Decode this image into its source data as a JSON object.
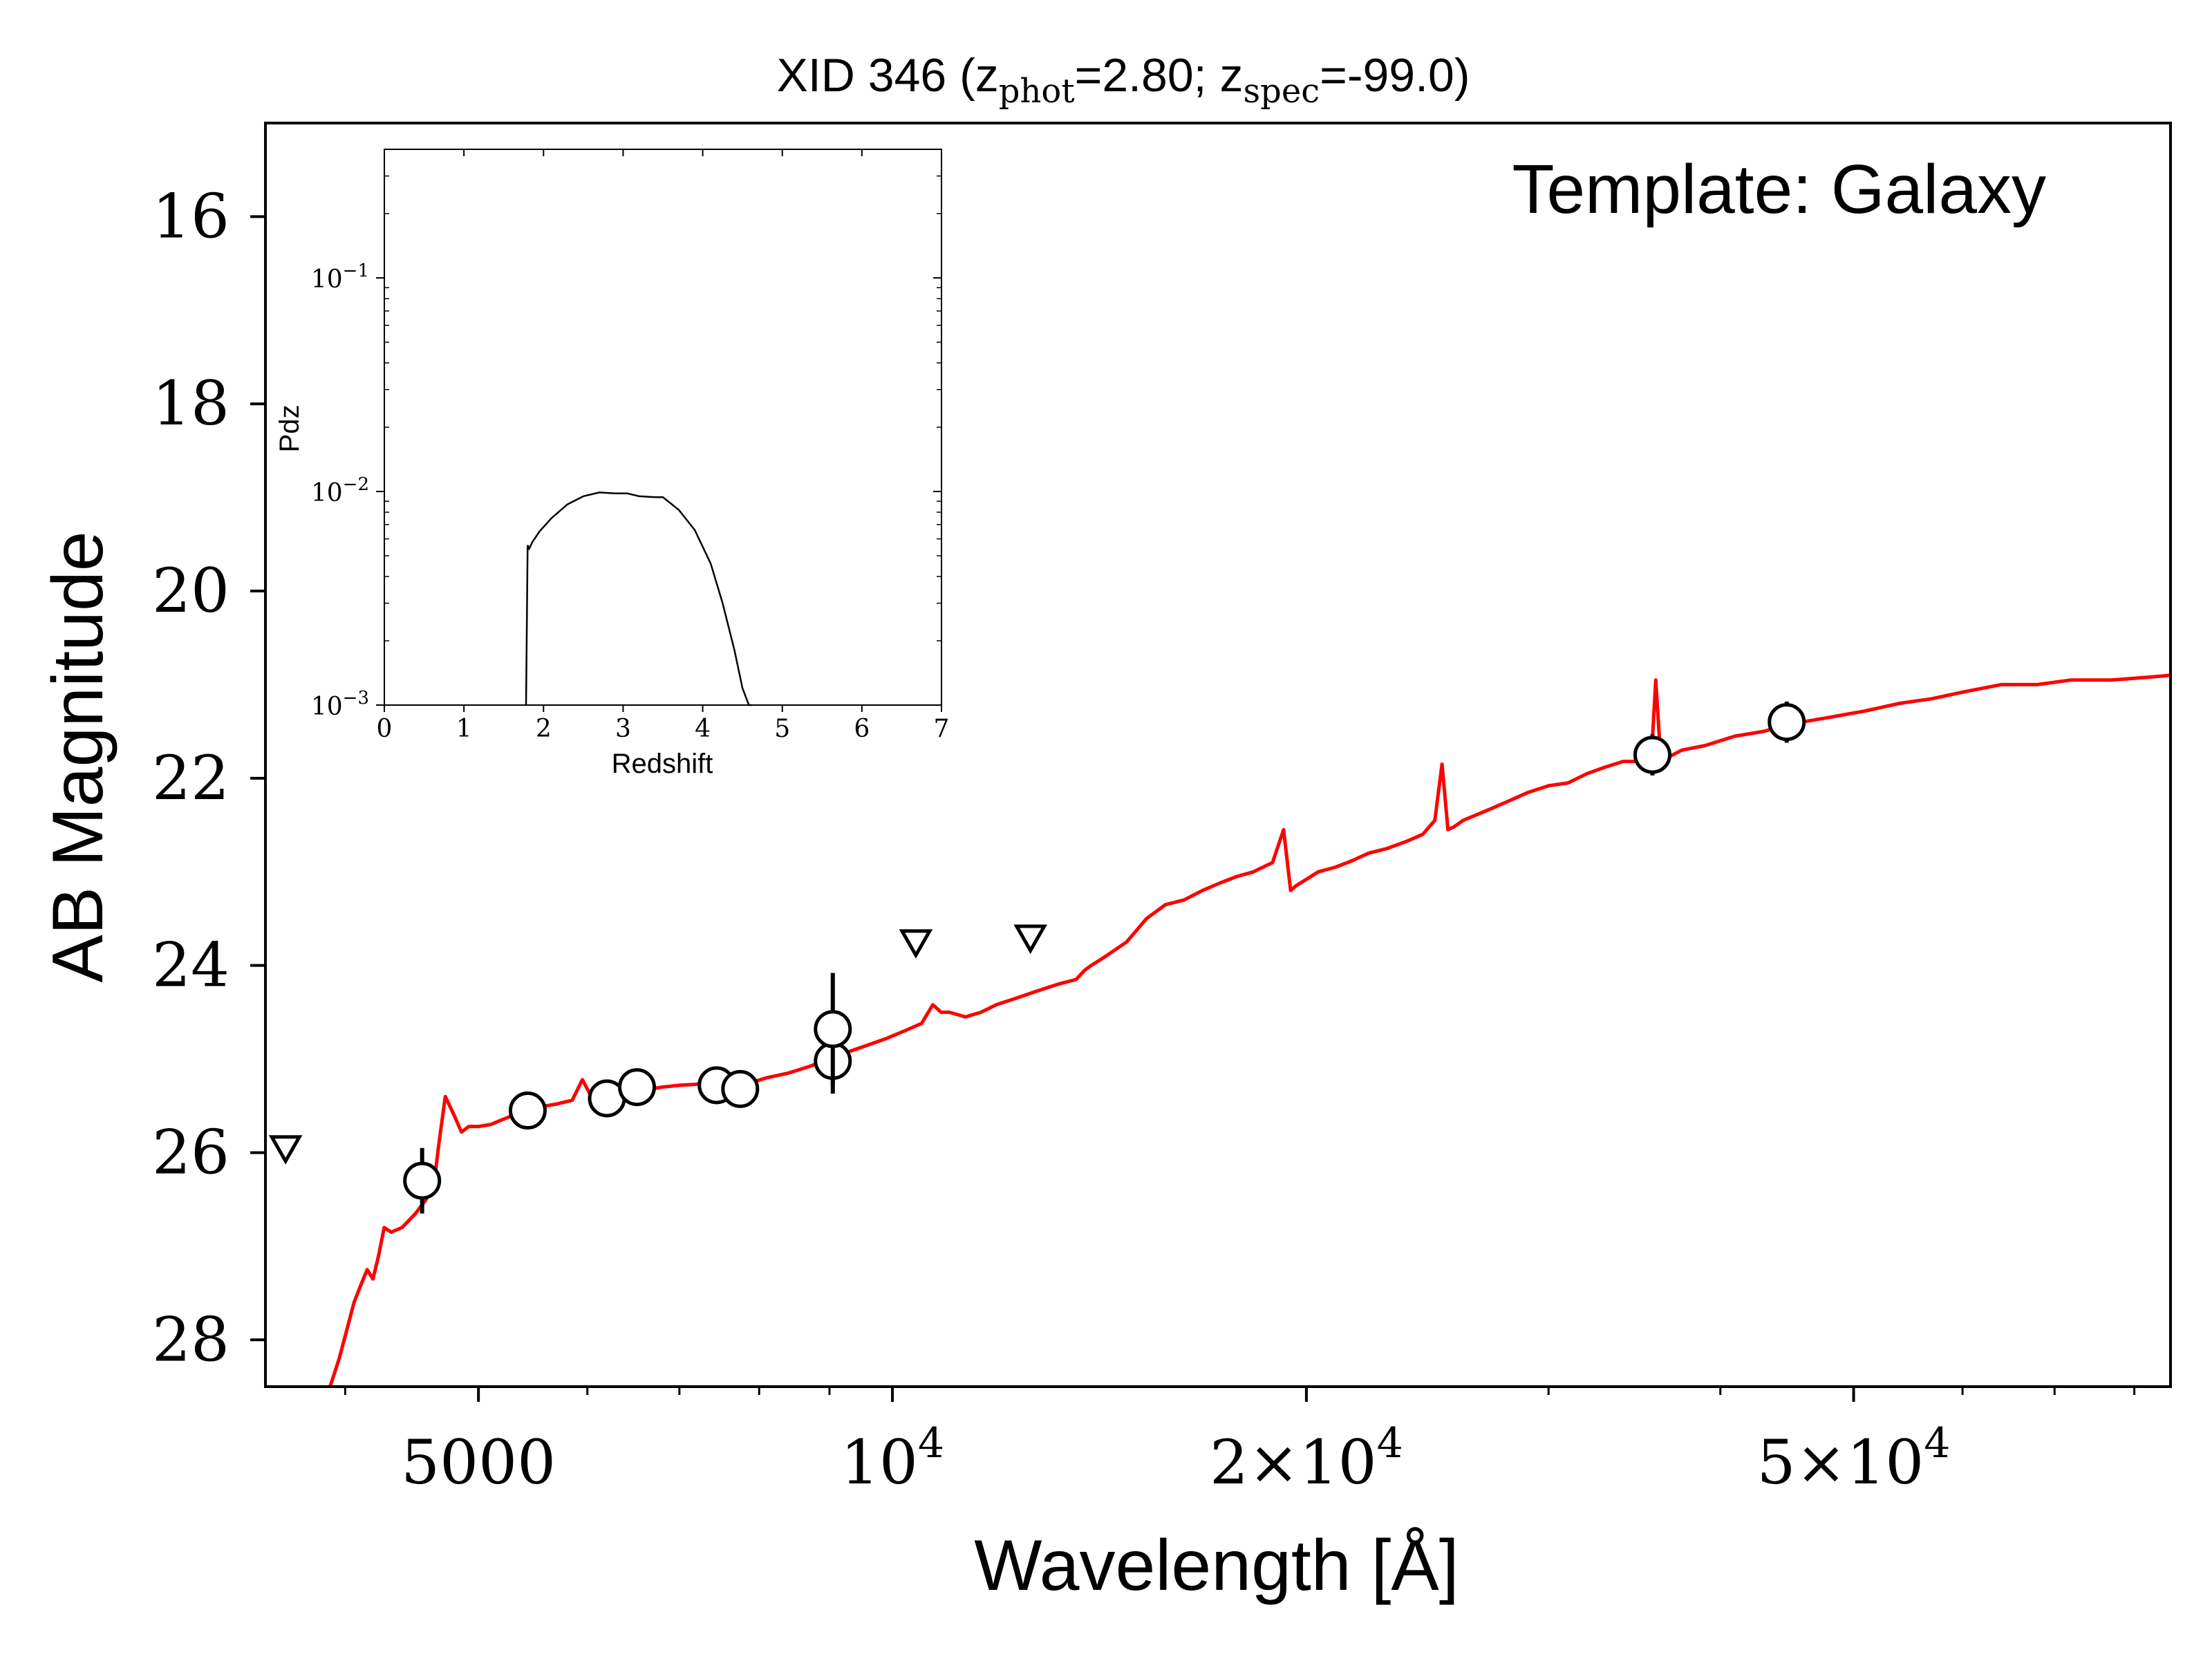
{
  "chart_data": [
    {
      "type": "scatter",
      "title": "XID 346 (z",
      "title_parts": {
        "prefix": "XID 346 (z",
        "sub1": "phot",
        "mid": "=2.80; z",
        "sub2": "spec",
        "suffix": "=-99.0)"
      },
      "annotation": "Template: Galaxy",
      "xlabel": "Wavelength [Å]",
      "ylabel": "AB Magnitude",
      "xscale": "log",
      "xlim": [
        3500,
        85000
      ],
      "ylim": [
        28.5,
        15.0
      ],
      "y_inverted": true,
      "xticks": [
        {
          "value": 5000,
          "label": "5000"
        },
        {
          "value": 10000,
          "label": "10",
          "exp": "4"
        },
        {
          "value": 20000,
          "label": "2×10",
          "exp": "4"
        },
        {
          "value": 50000,
          "label": "5×10",
          "exp": "4"
        }
      ],
      "yticks": [
        {
          "value": 16,
          "label": "16"
        },
        {
          "value": 18,
          "label": "18"
        },
        {
          "value": 20,
          "label": "20"
        },
        {
          "value": 22,
          "label": "22"
        },
        {
          "value": 24,
          "label": "24"
        },
        {
          "value": 26,
          "label": "26"
        },
        {
          "value": 28,
          "label": "28"
        }
      ],
      "series": [
        {
          "kind": "template",
          "color": "#ff0000",
          "x": [
            3900,
            3960,
            4010,
            4060,
            4110,
            4150,
            4190,
            4230,
            4270,
            4320,
            4400,
            4500,
            4580,
            4640,
            4680,
            4730,
            4800,
            4860,
            4920,
            5000,
            5100,
            5300,
            5500,
            5700,
            5850,
            5950,
            6050,
            6200,
            6400,
            6600,
            6800,
            7000,
            7200,
            7400,
            7550,
            7700,
            7900,
            8100,
            8400,
            8700,
            9000,
            9300,
            9600,
            9900,
            10200,
            10500,
            10700,
            10850,
            11000,
            11300,
            11600,
            11900,
            12300,
            12700,
            13200,
            13600,
            13800,
            13950,
            14300,
            14800,
            15100,
            15300,
            15800,
            16300,
            16800,
            17300,
            17800,
            18300,
            18900,
            19250,
            19480,
            19650,
            19900,
            20400,
            21000,
            21600,
            22200,
            22900,
            23600,
            24300,
            24800,
            25100,
            25350,
            25600,
            26000,
            27000,
            28000,
            29000,
            30000,
            31000,
            32000,
            33000,
            34000,
            35000,
            35600,
            35900,
            36200,
            36600,
            37500,
            39000,
            41000,
            43000,
            45000,
            48000,
            51000,
            54000,
            57000,
            60000,
            64000,
            68000,
            72000,
            77000,
            82000,
            85000
          ],
          "y": [
            28.5,
            28.2,
            27.9,
            27.6,
            27.4,
            27.25,
            27.35,
            27.1,
            26.8,
            26.85,
            26.8,
            26.65,
            26.5,
            26.35,
            25.9,
            25.4,
            25.6,
            25.78,
            25.72,
            25.72,
            25.7,
            25.6,
            25.52,
            25.48,
            25.44,
            25.22,
            25.42,
            25.4,
            25.36,
            25.33,
            25.3,
            25.28,
            25.27,
            25.25,
            25.15,
            25.3,
            25.25,
            25.2,
            25.15,
            25.08,
            25.0,
            24.92,
            24.85,
            24.78,
            24.7,
            24.62,
            24.42,
            24.5,
            24.5,
            24.55,
            24.5,
            24.42,
            24.35,
            24.28,
            24.2,
            24.15,
            24.05,
            24.0,
            23.9,
            23.75,
            23.6,
            23.5,
            23.35,
            23.3,
            23.2,
            23.12,
            23.05,
            23.0,
            22.9,
            22.55,
            23.2,
            23.15,
            23.1,
            23.0,
            22.95,
            22.88,
            22.8,
            22.75,
            22.68,
            22.6,
            22.45,
            21.85,
            22.55,
            22.52,
            22.45,
            22.35,
            22.25,
            22.15,
            22.08,
            22.05,
            21.95,
            21.88,
            21.82,
            21.82,
            21.9,
            20.95,
            21.8,
            21.78,
            21.7,
            21.65,
            21.55,
            21.5,
            21.42,
            21.35,
            21.28,
            21.2,
            21.15,
            21.08,
            21.0,
            21.0,
            20.95,
            20.95,
            20.92,
            20.9
          ]
        },
        {
          "kind": "detections",
          "points": [
            {
              "x": 4550,
              "y": 26.3,
              "yerr": 0.35
            },
            {
              "x": 5430,
              "y": 25.55,
              "yerr": 0.08
            },
            {
              "x": 6200,
              "y": 25.42,
              "yerr": 0.06
            },
            {
              "x": 6520,
              "y": 25.3,
              "yerr": 0.06
            },
            {
              "x": 7450,
              "y": 25.28,
              "yerr": 0.06
            },
            {
              "x": 7750,
              "y": 25.32,
              "yerr": 0.06
            },
            {
              "x": 9050,
              "y": 25.02,
              "yerr": 0.35
            },
            {
              "x": 9050,
              "y": 24.68,
              "yerr": 0.6
            },
            {
              "x": 35700,
              "y": 21.75,
              "yerr": 0.22
            },
            {
              "x": 44700,
              "y": 21.4,
              "yerr": 0.22
            }
          ]
        },
        {
          "kind": "upper_limits",
          "points": [
            {
              "x": 3620,
              "y": 25.95
            },
            {
              "x": 10400,
              "y": 23.75
            },
            {
              "x": 12600,
              "y": 23.7
            }
          ]
        }
      ]
    },
    {
      "type": "line",
      "xlabel": "Redshift",
      "ylabel": "Pdz",
      "yscale": "log",
      "xlim": [
        0,
        7
      ],
      "ylim": [
        0.001,
        0.4
      ],
      "xticks": [
        "0",
        "1",
        "2",
        "3",
        "4",
        "5",
        "6",
        "7"
      ],
      "yticks": [
        {
          "value": 0.1,
          "label": "10",
          "exp": "−1"
        },
        {
          "value": 0.01,
          "label": "10",
          "exp": "−2"
        },
        {
          "value": 0.001,
          "label": "10",
          "exp": "−3"
        }
      ],
      "x": [
        1.78,
        1.8,
        1.82,
        1.86,
        1.95,
        2.1,
        2.3,
        2.5,
        2.7,
        2.9,
        3.05,
        3.2,
        3.4,
        3.5,
        3.7,
        3.9,
        4.1,
        4.25,
        4.4,
        4.5,
        4.58,
        4.62
      ],
      "y": [
        0.001,
        0.0056,
        0.0054,
        0.0058,
        0.0065,
        0.0075,
        0.0087,
        0.0095,
        0.0099,
        0.0098,
        0.0098,
        0.0095,
        0.0094,
        0.0094,
        0.0082,
        0.0066,
        0.0046,
        0.003,
        0.0018,
        0.0012,
        0.001,
        0.001
      ],
      "color": "#000000"
    }
  ]
}
